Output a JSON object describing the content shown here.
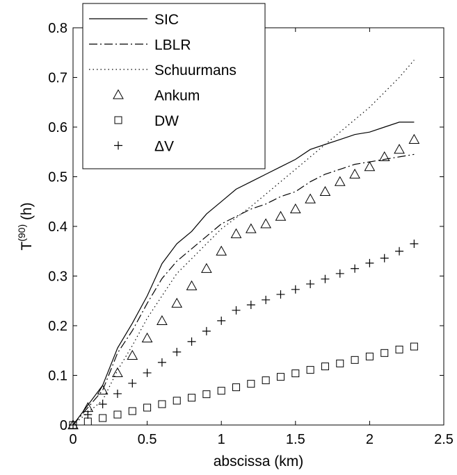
{
  "chart_data": {
    "type": "line",
    "xlabel": "abscissa (km)",
    "ylabel": "T",
    "ylabel_superscript": "(90)",
    "ylabel_unit": " (h)",
    "xlim": [
      0,
      2.5
    ],
    "ylim": [
      0,
      0.8
    ],
    "xticks": [
      0,
      0.5,
      1,
      1.5,
      2,
      2.5
    ],
    "xtick_labels": [
      "0",
      "0.5",
      "1",
      "1.5",
      "2",
      "2.5"
    ],
    "yticks": [
      0,
      0.1,
      0.2,
      0.3,
      0.4,
      0.5,
      0.6,
      0.7,
      0.8
    ],
    "ytick_labels": [
      "0",
      "0.1",
      "0.2",
      "0.3",
      "0.4",
      "0.5",
      "0.6",
      "0.7",
      "0.8"
    ],
    "grid": false,
    "legend_position": "top-left",
    "series": [
      {
        "name": "SIC",
        "style": "line-solid",
        "x": [
          0,
          0.1,
          0.2,
          0.3,
          0.4,
          0.5,
          0.6,
          0.7,
          0.8,
          0.9,
          1.0,
          1.1,
          1.2,
          1.3,
          1.4,
          1.5,
          1.6,
          1.7,
          1.8,
          1.9,
          2.0,
          2.1,
          2.2,
          2.3
        ],
        "y": [
          0,
          0.04,
          0.08,
          0.155,
          0.205,
          0.26,
          0.325,
          0.365,
          0.39,
          0.425,
          0.45,
          0.475,
          0.49,
          0.505,
          0.52,
          0.535,
          0.555,
          0.565,
          0.575,
          0.585,
          0.59,
          0.6,
          0.61,
          0.61
        ]
      },
      {
        "name": "LBLR",
        "style": "line-dashdot",
        "x": [
          0,
          0.1,
          0.2,
          0.3,
          0.4,
          0.5,
          0.6,
          0.7,
          0.8,
          0.9,
          1.0,
          1.1,
          1.2,
          1.3,
          1.4,
          1.5,
          1.6,
          1.7,
          1.8,
          1.9,
          2.0,
          2.1,
          2.2,
          2.3
        ],
        "y": [
          0,
          0.035,
          0.07,
          0.145,
          0.19,
          0.245,
          0.295,
          0.33,
          0.355,
          0.38,
          0.405,
          0.42,
          0.435,
          0.445,
          0.46,
          0.47,
          0.49,
          0.505,
          0.515,
          0.525,
          0.53,
          0.535,
          0.54,
          0.545
        ]
      },
      {
        "name": "Schuurmans",
        "style": "line-dotted",
        "x": [
          0,
          0.1,
          0.2,
          0.3,
          0.4,
          0.5,
          0.6,
          0.7,
          0.8,
          0.9,
          1.0,
          1.2,
          1.4,
          1.6,
          1.8,
          2.0,
          2.2,
          2.3
        ],
        "y": [
          0,
          0.025,
          0.05,
          0.11,
          0.16,
          0.215,
          0.26,
          0.305,
          0.335,
          0.365,
          0.395,
          0.44,
          0.49,
          0.54,
          0.59,
          0.64,
          0.7,
          0.735
        ]
      },
      {
        "name": "Ankum",
        "style": "marker-triangle",
        "x": [
          0,
          0.1,
          0.2,
          0.3,
          0.4,
          0.5,
          0.6,
          0.7,
          0.8,
          0.9,
          1.0,
          1.1,
          1.2,
          1.3,
          1.4,
          1.5,
          1.6,
          1.7,
          1.8,
          1.9,
          2.0,
          2.1,
          2.2,
          2.3
        ],
        "y": [
          0,
          0.035,
          0.07,
          0.105,
          0.14,
          0.175,
          0.21,
          0.245,
          0.28,
          0.315,
          0.35,
          0.385,
          0.395,
          0.405,
          0.42,
          0.435,
          0.455,
          0.47,
          0.49,
          0.505,
          0.52,
          0.54,
          0.555,
          0.575
        ]
      },
      {
        "name": "DW",
        "style": "marker-square",
        "x": [
          0,
          0.1,
          0.2,
          0.3,
          0.4,
          0.5,
          0.6,
          0.7,
          0.8,
          0.9,
          1.0,
          1.1,
          1.2,
          1.3,
          1.4,
          1.5,
          1.6,
          1.7,
          1.8,
          1.9,
          2.0,
          2.1,
          2.2,
          2.3
        ],
        "y": [
          0,
          0.007,
          0.014,
          0.021,
          0.028,
          0.035,
          0.042,
          0.049,
          0.055,
          0.062,
          0.069,
          0.076,
          0.083,
          0.09,
          0.097,
          0.104,
          0.111,
          0.118,
          0.124,
          0.131,
          0.138,
          0.145,
          0.152,
          0.158
        ]
      },
      {
        "name": "ΔV",
        "style": "marker-plus",
        "x": [
          0,
          0.1,
          0.2,
          0.3,
          0.4,
          0.5,
          0.6,
          0.7,
          0.8,
          0.9,
          1.0,
          1.1,
          1.2,
          1.3,
          1.4,
          1.5,
          1.6,
          1.7,
          1.8,
          1.9,
          2.0,
          2.1,
          2.2,
          2.3
        ],
        "y": [
          0,
          0.021,
          0.042,
          0.063,
          0.084,
          0.105,
          0.126,
          0.147,
          0.168,
          0.189,
          0.21,
          0.231,
          0.242,
          0.252,
          0.263,
          0.273,
          0.284,
          0.294,
          0.305,
          0.315,
          0.326,
          0.336,
          0.35,
          0.365
        ]
      }
    ]
  }
}
